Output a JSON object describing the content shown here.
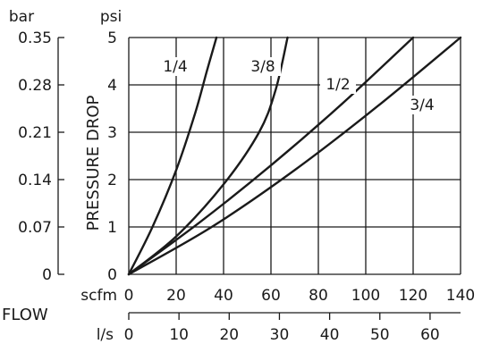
{
  "chart_data": {
    "type": "line",
    "title": "",
    "ylabel": "PRESSURE DROP",
    "xlabel": "FLOW",
    "x_unit_primary": "scfm",
    "x_unit_secondary": "l/s",
    "y_unit_primary": "psi",
    "y_unit_secondary": "bar",
    "xlim": [
      0,
      140
    ],
    "ylim": [
      0,
      5
    ],
    "x_ticks": [
      "0",
      "20",
      "40",
      "60",
      "80",
      "100",
      "120",
      "140"
    ],
    "x_ticks_secondary": [
      "0",
      "10",
      "20",
      "30",
      "40",
      "50",
      "60"
    ],
    "y_ticks": [
      "0",
      "1",
      "2",
      "3",
      "4",
      "5"
    ],
    "y_ticks_secondary": [
      "0",
      "0.07",
      "0.14",
      "0.21",
      "0.28",
      "0.35"
    ],
    "grid": true,
    "series": [
      {
        "name": "1/4",
        "x": [
          0,
          10,
          20,
          28,
          33,
          37
        ],
        "y": [
          0,
          1.0,
          2.2,
          3.4,
          4.3,
          5.0
        ]
      },
      {
        "name": "3/8",
        "x": [
          0,
          20,
          40,
          55,
          62,
          67
        ],
        "y": [
          0,
          0.8,
          1.9,
          3.0,
          3.9,
          5.0
        ]
      },
      {
        "name": "1/2",
        "x": [
          0,
          30,
          60,
          90,
          120
        ],
        "y": [
          0,
          1.1,
          2.3,
          3.6,
          5.0
        ]
      },
      {
        "name": "3/4",
        "x": [
          0,
          35,
          70,
          105,
          140
        ],
        "y": [
          0,
          1.0,
          2.2,
          3.55,
          5.0
        ]
      }
    ]
  }
}
